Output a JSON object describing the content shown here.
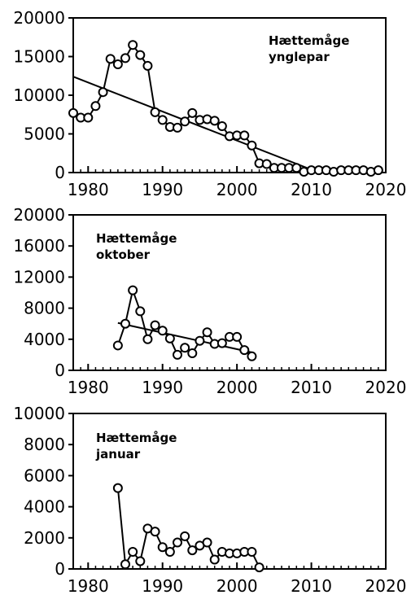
{
  "style": {
    "line_color": "#000000",
    "marker_fill": "#ffffff",
    "background": "#ffffff"
  },
  "chart_data": [
    {
      "type": "scatter",
      "title": "",
      "xlabel": "",
      "ylabel": "",
      "annotation": [
        "Hættemåge",
        "ynglepar"
      ],
      "xlim": [
        1978,
        2020
      ],
      "ylim": [
        0,
        20000
      ],
      "xticks": [
        1980,
        1990,
        2000,
        2010,
        2020
      ],
      "yticks": [
        0,
        5000,
        10000,
        15000,
        20000
      ],
      "grid": false,
      "series": [
        {
          "x": [
            1978,
            1979,
            1980,
            1981,
            1982,
            1983,
            1984,
            1985,
            1986,
            1987,
            1988,
            1989,
            1990,
            1991,
            1992,
            1993,
            1994,
            1995,
            1996,
            1997,
            1998,
            1999,
            2000,
            2001,
            2002,
            2003,
            2004,
            2005,
            2006,
            2007,
            2008,
            2009,
            2010,
            2011,
            2012,
            2013,
            2014,
            2015,
            2016,
            2017,
            2018,
            2019
          ],
          "y": [
            7700,
            7100,
            7100,
            8600,
            10400,
            14700,
            14000,
            14800,
            16500,
            15200,
            13800,
            7800,
            6800,
            5900,
            5800,
            6600,
            7700,
            6800,
            6900,
            6700,
            6000,
            4700,
            4800,
            4800,
            3500,
            1200,
            1100,
            600,
            600,
            600,
            600,
            100,
            300,
            300,
            300,
            100,
            300,
            300,
            300,
            300,
            100,
            300
          ]
        }
      ],
      "trend": {
        "x": [
          1978,
          2011
        ],
        "y": [
          12400,
          0
        ]
      }
    },
    {
      "type": "scatter",
      "title": "",
      "xlabel": "",
      "ylabel": "",
      "annotation": [
        "Hættemåge",
        "oktober"
      ],
      "xlim": [
        1978,
        2020
      ],
      "ylim": [
        0,
        20000
      ],
      "xticks": [
        1980,
        1990,
        2000,
        2010,
        2020
      ],
      "yticks": [
        0,
        4000,
        8000,
        12000,
        16000,
        20000
      ],
      "grid": false,
      "series": [
        {
          "x": [
            1984,
            1985,
            1986,
            1987,
            1988,
            1989,
            1990,
            1991,
            1992,
            1993,
            1994,
            1995,
            1996,
            1997,
            1998,
            1999,
            2000,
            2001,
            2002
          ],
          "y": [
            3200,
            6000,
            10300,
            7600,
            4000,
            5800,
            5100,
            4100,
            2000,
            2900,
            2200,
            3800,
            4900,
            3400,
            3500,
            4300,
            4300,
            2600,
            1800
          ]
        }
      ],
      "trend": {
        "x": [
          1984,
          2002
        ],
        "y": [
          6100,
          2300
        ]
      }
    },
    {
      "type": "line",
      "title": "",
      "xlabel": "",
      "ylabel": "",
      "annotation": [
        "Hættemåge",
        "januar"
      ],
      "xlim": [
        1978,
        2020
      ],
      "ylim": [
        0,
        10000
      ],
      "xticks": [
        1980,
        1990,
        2000,
        2010,
        2020
      ],
      "yticks": [
        0,
        2000,
        4000,
        6000,
        8000,
        10000
      ],
      "grid": false,
      "series": [
        {
          "x": [
            1984,
            1985,
            1986,
            1987,
            1988,
            1989,
            1990,
            1991,
            1992,
            1993,
            1994,
            1995,
            1996,
            1997,
            1998,
            1999,
            2000,
            2001,
            2002,
            2003
          ],
          "y": [
            5200,
            300,
            1100,
            500,
            2600,
            2400,
            1400,
            1100,
            1700,
            2100,
            1200,
            1500,
            1700,
            600,
            1100,
            1000,
            1000,
            1100,
            1100,
            100
          ]
        }
      ]
    }
  ]
}
